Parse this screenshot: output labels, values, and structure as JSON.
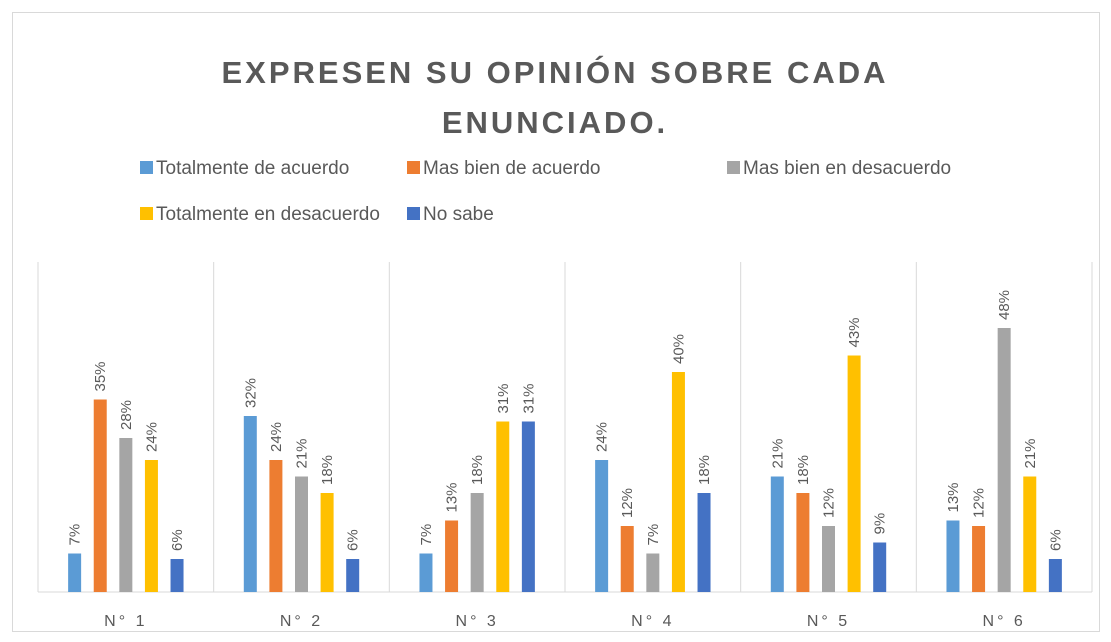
{
  "chart_data": {
    "type": "bar",
    "title": "EXPRESEN SU OPINIÓN SOBRE CADA ENUNCIADO.",
    "categories": [
      "N° 1",
      "N° 2",
      "N° 3",
      "N° 4",
      "N° 5",
      "N° 6"
    ],
    "series": [
      {
        "name": "Totalmente de acuerdo",
        "color": "#5b9bd5",
        "values": [
          7,
          32,
          7,
          24,
          21,
          13
        ],
        "value_labels": [
          "7%",
          "32%",
          "7%",
          "24%",
          "21%",
          "13%"
        ]
      },
      {
        "name": "Mas bien de acuerdo",
        "color": "#ed7d31",
        "values": [
          35,
          24,
          13,
          12,
          18,
          12
        ],
        "value_labels": [
          "35%",
          "24%",
          "13%",
          "12%",
          "18%",
          "12%"
        ]
      },
      {
        "name": "Mas bien en desacuerdo",
        "color": "#a5a5a5",
        "values": [
          28,
          21,
          18,
          7,
          12,
          48
        ],
        "value_labels": [
          "28%",
          "21%",
          "18%",
          "7%",
          "12%",
          "48%"
        ]
      },
      {
        "name": "Totalmente en desacuerdo",
        "color": "#ffc000",
        "values": [
          24,
          18,
          31,
          40,
          43,
          21
        ],
        "value_labels": [
          "24%",
          "18%",
          "31%",
          "40%",
          "43%",
          "21%"
        ]
      },
      {
        "name": "No sabe",
        "color": "#4472c4",
        "values": [
          6,
          6,
          31,
          18,
          9,
          6
        ],
        "value_labels": [
          "6%",
          "6%",
          "31%",
          "18%",
          "9%",
          "6%"
        ]
      }
    ],
    "ylim": [
      0,
      60
    ],
    "legend": "top"
  }
}
